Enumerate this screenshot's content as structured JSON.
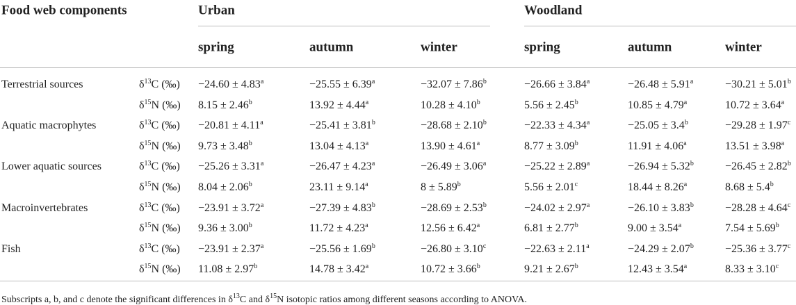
{
  "header": {
    "first": "Food web components",
    "groups": [
      {
        "name": "Urban",
        "seasons": [
          "spring",
          "autumn",
          "winter"
        ]
      },
      {
        "name": "Woodland",
        "seasons": [
          "spring",
          "autumn",
          "winter"
        ]
      }
    ]
  },
  "rows": [
    {
      "component": "Terrestrial sources",
      "isotope": [
        "δ",
        "13",
        "C (‰)"
      ],
      "cells": [
        [
          "−24.60 ± 4.83",
          "a"
        ],
        [
          "−25.55 ± 6.39",
          "a"
        ],
        [
          "−32.07 ± 7.86",
          "b"
        ],
        [
          "−26.66 ± 3.84",
          "a"
        ],
        [
          "−26.48 ± 5.91",
          "a"
        ],
        [
          "−30.21 ± 5.01",
          "b"
        ]
      ]
    },
    {
      "isotope": [
        "δ",
        "15",
        "N (‰)"
      ],
      "cells": [
        [
          "8.15 ± 2.46",
          "b"
        ],
        [
          "13.92 ± 4.44",
          "a"
        ],
        [
          "10.28 ± 4.10",
          "b"
        ],
        [
          "5.56 ± 2.45",
          "b"
        ],
        [
          "10.85 ± 4.79",
          "a"
        ],
        [
          "10.72 ± 3.64",
          "a"
        ]
      ]
    },
    {
      "component": "Aquatic macrophytes",
      "isotope": [
        "δ",
        "13",
        "C (‰)"
      ],
      "cells": [
        [
          "−20.81 ± 4.11",
          "a"
        ],
        [
          "−25.41 ± 3.81",
          "b"
        ],
        [
          "−28.68 ± 2.10",
          "b"
        ],
        [
          "−22.33 ± 4.34",
          "a"
        ],
        [
          "−25.05 ± 3.4",
          "b"
        ],
        [
          "−29.28 ± 1.97",
          "c"
        ]
      ]
    },
    {
      "isotope": [
        "δ",
        "15",
        "N (‰)"
      ],
      "cells": [
        [
          "9.73 ± 3.48",
          "b"
        ],
        [
          "13.04 ± 4.13",
          "a"
        ],
        [
          "13.90 ± 4.61",
          "a"
        ],
        [
          "8.77 ± 3.09",
          "b"
        ],
        [
          "11.91 ± 4.06",
          "a"
        ],
        [
          "13.51 ± 3.98",
          "a"
        ]
      ]
    },
    {
      "component": "Lower aquatic sources",
      "isotope": [
        "δ",
        "13",
        "C (‰)"
      ],
      "cells": [
        [
          "−25.26 ± 3.31",
          "a"
        ],
        [
          "−26.47 ± 4.23",
          "a"
        ],
        [
          "−26.49 ± 3.06",
          "a"
        ],
        [
          "−25.22 ± 2.89",
          "a"
        ],
        [
          "−26.94 ± 5.32",
          "b"
        ],
        [
          "−26.45 ± 2.82",
          "b"
        ]
      ]
    },
    {
      "isotope": [
        "δ",
        "15",
        "N (‰)"
      ],
      "cells": [
        [
          "8.04 ± 2.06",
          "b"
        ],
        [
          "23.11 ± 9.14",
          "a"
        ],
        [
          "8 ± 5.89",
          "b"
        ],
        [
          "5.56 ± 2.01",
          "c"
        ],
        [
          "18.44 ± 8.26",
          "a"
        ],
        [
          "8.68 ± 5.4",
          "b"
        ]
      ]
    },
    {
      "component": "Macroinvertebrates",
      "isotope": [
        "δ",
        "13",
        "C (‰)"
      ],
      "cells": [
        [
          "−23.91 ± 3.72",
          "a"
        ],
        [
          "−27.39 ± 4.83",
          "b"
        ],
        [
          "−28.69 ± 2.53",
          "b"
        ],
        [
          "−24.02 ± 2.97",
          "a"
        ],
        [
          "−26.10 ± 3.83",
          "b"
        ],
        [
          "−28.28 ± 4.64",
          "c"
        ]
      ]
    },
    {
      "isotope": [
        "δ",
        "15",
        "N (‰)"
      ],
      "cells": [
        [
          "9.36 ± 3.00",
          "b"
        ],
        [
          "11.72 ± 4.23",
          "a"
        ],
        [
          "12.56 ± 6.42",
          "a"
        ],
        [
          "6.81 ± 2.77",
          "b"
        ],
        [
          "9.00 ± 3.54",
          "a"
        ],
        [
          "7.54 ± 5.69",
          "b"
        ]
      ]
    },
    {
      "component": "Fish",
      "isotope": [
        "δ",
        "13",
        "C (‰)"
      ],
      "cells": [
        [
          "−23.91 ± 2.37",
          "a"
        ],
        [
          "−25.56 ± 1.69",
          "b"
        ],
        [
          "−26.80 ± 3.10",
          "c"
        ],
        [
          "−22.63 ± 2.11",
          "a"
        ],
        [
          "−24.29 ± 2.07",
          "b"
        ],
        [
          "−25.36 ± 3.77",
          "c"
        ]
      ]
    },
    {
      "isotope": [
        "δ",
        "15",
        "N (‰)"
      ],
      "cells": [
        [
          "11.08 ± 2.97",
          "b"
        ],
        [
          "14.78 ± 3.42",
          "a"
        ],
        [
          "10.72 ± 3.66",
          "b"
        ],
        [
          "9.21 ± 2.67",
          "b"
        ],
        [
          "12.43 ± 3.54",
          "a"
        ],
        [
          "8.33 ± 3.10",
          "c"
        ]
      ]
    }
  ],
  "footnote": [
    "Subscripts a, b, and c denote the significant differences in δ",
    "13",
    "C and δ",
    "15",
    "N isotopic ratios among different seasons according to ANOVA."
  ]
}
